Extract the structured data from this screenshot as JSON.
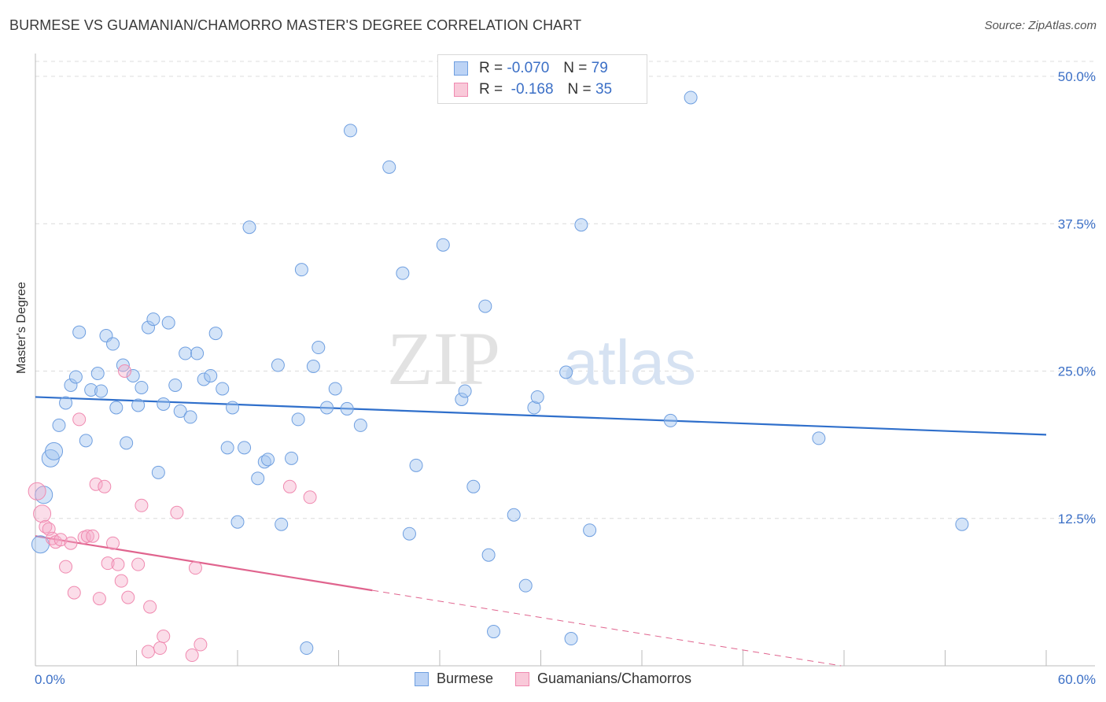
{
  "title": "BURMESE VS GUAMANIAN/CHAMORRO MASTER'S DEGREE CORRELATION CHART",
  "source": "Source: ZipAtlas.com",
  "watermark": {
    "zip": "ZIP",
    "atlas": "atlas"
  },
  "legend": {
    "rows": [
      {
        "r_label": "R =",
        "r_value": "-0.070",
        "n_label": "N =",
        "n_value": "79"
      },
      {
        "r_label": "R =",
        "r_value": "-0.168",
        "n_label": "N =",
        "n_value": "35"
      }
    ]
  },
  "chart_data": {
    "type": "scatter",
    "title": "BURMESE VS GUAMANIAN/CHAMORRO MASTER'S DEGREE CORRELATION CHART",
    "xlabel": "",
    "ylabel": "Master's Degree",
    "xlim": [
      0,
      60
    ],
    "ylim": [
      0,
      50
    ],
    "x_tick_labels": [
      "0.0%",
      "60.0%"
    ],
    "y_ticks": [
      12.5,
      25.0,
      37.5,
      50.0
    ],
    "y_tick_labels": [
      "12.5%",
      "25.0%",
      "37.5%",
      "50.0%"
    ],
    "grid": true,
    "legend_position": "top-center",
    "colors": {
      "burmese": "#6f9fe0",
      "guamanian": "#f08ab0",
      "burmese_line": "#2f6fcb",
      "guamanian_line": "#e0648e",
      "tick_label": "#3b6fc6"
    },
    "series": [
      {
        "name": "Burmese",
        "r": -0.07,
        "n": 79,
        "trend": {
          "x": [
            0,
            60
          ],
          "y": [
            22.8,
            19.6
          ]
        },
        "points": [
          [
            0.3,
            10.3
          ],
          [
            0.5,
            14.5
          ],
          [
            0.9,
            17.6
          ],
          [
            1.1,
            18.2
          ],
          [
            1.4,
            20.4
          ],
          [
            1.8,
            22.3
          ],
          [
            2.1,
            23.8
          ],
          [
            2.4,
            24.5
          ],
          [
            2.6,
            28.3
          ],
          [
            3.0,
            19.1
          ],
          [
            3.3,
            23.4
          ],
          [
            3.7,
            24.8
          ],
          [
            3.9,
            23.3
          ],
          [
            4.2,
            28.0
          ],
          [
            4.6,
            27.3
          ],
          [
            4.8,
            21.9
          ],
          [
            5.2,
            25.5
          ],
          [
            5.4,
            18.9
          ],
          [
            5.8,
            24.6
          ],
          [
            6.1,
            22.1
          ],
          [
            6.3,
            23.6
          ],
          [
            6.7,
            28.7
          ],
          [
            7.0,
            29.4
          ],
          [
            7.3,
            16.4
          ],
          [
            7.6,
            22.2
          ],
          [
            7.9,
            29.1
          ],
          [
            8.3,
            23.8
          ],
          [
            8.6,
            21.6
          ],
          [
            8.9,
            26.5
          ],
          [
            9.2,
            21.1
          ],
          [
            9.6,
            26.5
          ],
          [
            10.0,
            24.3
          ],
          [
            10.4,
            24.6
          ],
          [
            10.7,
            28.2
          ],
          [
            11.1,
            23.5
          ],
          [
            11.4,
            18.5
          ],
          [
            11.7,
            21.9
          ],
          [
            12.0,
            12.2
          ],
          [
            12.4,
            18.5
          ],
          [
            12.7,
            37.2
          ],
          [
            13.2,
            15.9
          ],
          [
            13.6,
            17.3
          ],
          [
            13.8,
            17.5
          ],
          [
            14.4,
            25.5
          ],
          [
            14.6,
            12.0
          ],
          [
            15.2,
            17.6
          ],
          [
            15.6,
            20.9
          ],
          [
            15.8,
            33.6
          ],
          [
            16.1,
            1.5
          ],
          [
            16.5,
            25.4
          ],
          [
            16.8,
            27.0
          ],
          [
            17.3,
            21.9
          ],
          [
            17.8,
            23.5
          ],
          [
            18.5,
            21.8
          ],
          [
            18.7,
            45.4
          ],
          [
            19.3,
            20.4
          ],
          [
            21.0,
            42.3
          ],
          [
            21.8,
            33.3
          ],
          [
            22.2,
            11.2
          ],
          [
            22.6,
            17.0
          ],
          [
            24.2,
            35.7
          ],
          [
            25.3,
            22.6
          ],
          [
            25.5,
            23.3
          ],
          [
            26.0,
            15.2
          ],
          [
            26.7,
            30.5
          ],
          [
            26.9,
            9.4
          ],
          [
            27.2,
            2.9
          ],
          [
            28.4,
            12.8
          ],
          [
            29.1,
            6.8
          ],
          [
            29.6,
            21.9
          ],
          [
            29.8,
            22.8
          ],
          [
            31.5,
            24.9
          ],
          [
            31.8,
            2.3
          ],
          [
            32.4,
            37.4
          ],
          [
            32.9,
            11.5
          ],
          [
            37.7,
            20.8
          ],
          [
            38.9,
            48.2
          ],
          [
            46.5,
            19.3
          ],
          [
            55.0,
            12.0
          ]
        ]
      },
      {
        "name": "Guamanians/Chamorros",
        "r": -0.168,
        "n": 35,
        "trend": {
          "x": [
            0,
            20
          ],
          "y": [
            11.0,
            6.4
          ]
        },
        "trend_dashed": {
          "x": [
            20,
            60
          ],
          "y": [
            6.4,
            -2.8
          ]
        },
        "points": [
          [
            0.1,
            14.8
          ],
          [
            0.4,
            12.9
          ],
          [
            0.6,
            11.8
          ],
          [
            0.8,
            11.6
          ],
          [
            1.0,
            10.8
          ],
          [
            1.2,
            10.5
          ],
          [
            1.5,
            10.7
          ],
          [
            1.8,
            8.4
          ],
          [
            2.1,
            10.4
          ],
          [
            2.3,
            6.2
          ],
          [
            2.6,
            20.9
          ],
          [
            2.9,
            10.9
          ],
          [
            3.1,
            11.0
          ],
          [
            3.4,
            11.0
          ],
          [
            3.6,
            15.4
          ],
          [
            3.8,
            5.7
          ],
          [
            4.1,
            15.2
          ],
          [
            4.3,
            8.7
          ],
          [
            4.6,
            10.4
          ],
          [
            4.9,
            8.6
          ],
          [
            5.1,
            7.2
          ],
          [
            5.3,
            25.0
          ],
          [
            5.5,
            5.8
          ],
          [
            6.1,
            8.6
          ],
          [
            6.3,
            13.6
          ],
          [
            6.7,
            1.2
          ],
          [
            6.8,
            5.0
          ],
          [
            7.4,
            1.5
          ],
          [
            7.6,
            2.5
          ],
          [
            8.4,
            13.0
          ],
          [
            9.3,
            0.9
          ],
          [
            9.5,
            8.3
          ],
          [
            9.8,
            1.8
          ],
          [
            15.1,
            15.2
          ],
          [
            16.3,
            14.3
          ]
        ]
      }
    ]
  },
  "bottom_legend": [
    "Burmese",
    "Guamanians/Chamorros"
  ]
}
